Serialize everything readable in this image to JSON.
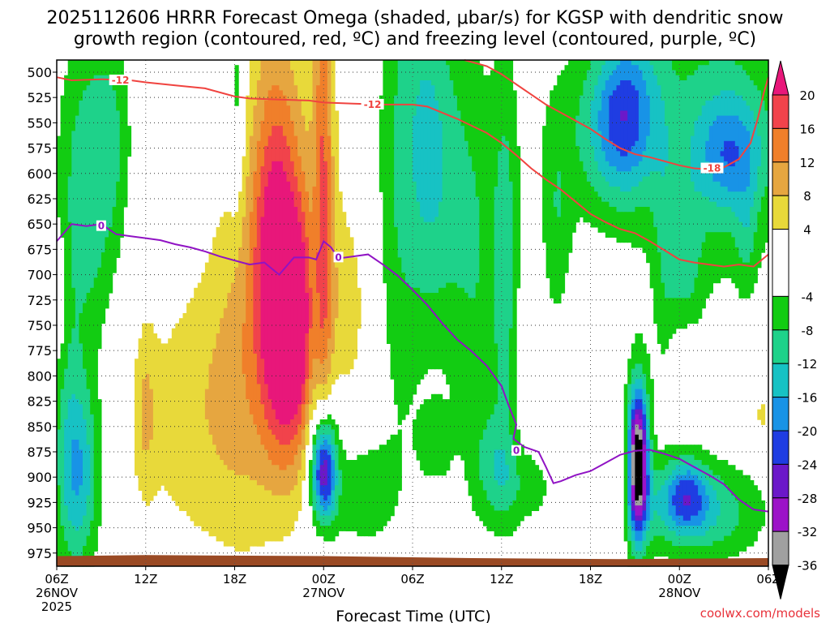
{
  "chart_data": {
    "type": "heatmap",
    "title_line1": "2025112606 HRRR Forecast Omega (shaded, μbar/s) for KGSP with dendritic snow",
    "title_line2": "growth region (contoured, red, ºC) and freezing level (contoured, purple, ºC)",
    "xlabel": "Forecast Time (UTC)",
    "credit": "coolwx.com/models",
    "x_ticks": [
      {
        "h": 0,
        "label": "06Z",
        "date": "26NOV",
        "year": "2025"
      },
      {
        "h": 6,
        "label": "12Z",
        "date": "",
        "year": ""
      },
      {
        "h": 12,
        "label": "18Z",
        "date": "",
        "year": ""
      },
      {
        "h": 18,
        "label": "00Z",
        "date": "27NOV",
        "year": ""
      },
      {
        "h": 24,
        "label": "06Z",
        "date": "",
        "year": ""
      },
      {
        "h": 30,
        "label": "12Z",
        "date": "",
        "year": ""
      },
      {
        "h": 36,
        "label": "18Z",
        "date": "",
        "year": ""
      },
      {
        "h": 42,
        "label": "00Z",
        "date": "28NOV",
        "year": ""
      },
      {
        "h": 48,
        "label": "06Z",
        "date": "",
        "year": ""
      }
    ],
    "xlim_hours": [
      0,
      48
    ],
    "y_ticks": [
      "500",
      "525",
      "550",
      "575",
      "600",
      "625",
      "650",
      "675",
      "700",
      "725",
      "750",
      "775",
      "800",
      "825",
      "850",
      "875",
      "900",
      "925",
      "950",
      "975"
    ],
    "ylim_mb": [
      488,
      988
    ],
    "y_reversed": true,
    "grid": "dotted",
    "colorbar": {
      "labels": [
        "20",
        "16",
        "12",
        "8",
        "4",
        "-4",
        "-8",
        "-12",
        "-16",
        "-20",
        "-24",
        "-28",
        "-32",
        "-36"
      ],
      "bins": [
        {
          "lo": 20,
          "hi": 24,
          "color": "#e8177a"
        },
        {
          "lo": 16,
          "hi": 20,
          "color": "#f1434b"
        },
        {
          "lo": 12,
          "hi": 16,
          "color": "#f07f2a"
        },
        {
          "lo": 8,
          "hi": 12,
          "color": "#e6a640"
        },
        {
          "lo": 4,
          "hi": 8,
          "color": "#e8d93a"
        },
        {
          "lo": -4,
          "hi": 4,
          "color": "#ffffff"
        },
        {
          "lo": -8,
          "hi": -4,
          "color": "#12cc12"
        },
        {
          "lo": -12,
          "hi": -8,
          "color": "#1ed28a"
        },
        {
          "lo": -16,
          "hi": -12,
          "color": "#17c2c4"
        },
        {
          "lo": -20,
          "hi": -16,
          "color": "#1893e6"
        },
        {
          "lo": -24,
          "hi": -20,
          "color": "#1f3de2"
        },
        {
          "lo": -28,
          "hi": -24,
          "color": "#6b18c9"
        },
        {
          "lo": -32,
          "hi": -28,
          "color": "#9c13c8"
        },
        {
          "lo": -36,
          "hi": -32,
          "color": "#a0a0a0"
        },
        {
          "lo": -40,
          "hi": -36,
          "color": "#000000"
        }
      ]
    },
    "omega_features": [
      {
        "t": 2.0,
        "p": 620,
        "st": 1.4,
        "sp": 115,
        "a": -11
      },
      {
        "t": 1.6,
        "p": 900,
        "st": 1.0,
        "sp": 65,
        "a": -13
      },
      {
        "t": 0.8,
        "p": 860,
        "st": 0.8,
        "sp": 90,
        "a": -6
      },
      {
        "t": 3.8,
        "p": 560,
        "st": 0.9,
        "sp": 75,
        "a": -6
      },
      {
        "t": 0.3,
        "p": 720,
        "st": 0.25,
        "sp": 40,
        "a": 5
      },
      {
        "t": 6.0,
        "p": 835,
        "st": 0.5,
        "sp": 55,
        "a": 6
      },
      {
        "t": 9.5,
        "p": 840,
        "st": 3.5,
        "sp": 100,
        "a": 6
      },
      {
        "t": 13.0,
        "p": 760,
        "st": 2.0,
        "sp": 140,
        "a": 7
      },
      {
        "t": 15.0,
        "p": 700,
        "st": 1.1,
        "sp": 100,
        "a": 18
      },
      {
        "t": 15.8,
        "p": 810,
        "st": 1.0,
        "sp": 70,
        "a": 10
      },
      {
        "t": 14.5,
        "p": 560,
        "st": 1.2,
        "sp": 140,
        "a": 7
      },
      {
        "t": 17.0,
        "p": 640,
        "st": 1.6,
        "sp": 160,
        "a": 5
      },
      {
        "t": 16.4,
        "p": 730,
        "st": 0.5,
        "sp": 65,
        "a": 10
      },
      {
        "t": 18.0,
        "p": 580,
        "st": 0.45,
        "sp": 240,
        "a": 12
      },
      {
        "t": 19.5,
        "p": 735,
        "st": 1.3,
        "sp": 75,
        "a": 5
      },
      {
        "t": 12.1,
        "p": 530,
        "st": 0.4,
        "sp": 70,
        "a": -7
      },
      {
        "t": 18.0,
        "p": 895,
        "st": 0.55,
        "sp": 35,
        "a": -22
      },
      {
        "t": 18.0,
        "p": 880,
        "st": 0.7,
        "sp": 55,
        "a": -10
      },
      {
        "t": 20.5,
        "p": 915,
        "st": 1.6,
        "sp": 40,
        "a": -7
      },
      {
        "t": 23.0,
        "p": 600,
        "st": 1.1,
        "sp": 200,
        "a": -7
      },
      {
        "t": 25.0,
        "p": 560,
        "st": 1.1,
        "sp": 130,
        "a": -9
      },
      {
        "t": 26.5,
        "p": 610,
        "st": 1.5,
        "sp": 120,
        "a": -6
      },
      {
        "t": 28.5,
        "p": 720,
        "st": 1.3,
        "sp": 170,
        "a": -6
      },
      {
        "t": 30.3,
        "p": 690,
        "st": 0.6,
        "sp": 150,
        "a": -8
      },
      {
        "t": 29.5,
        "p": 885,
        "st": 0.9,
        "sp": 35,
        "a": -6
      },
      {
        "t": 31.5,
        "p": 910,
        "st": 1.6,
        "sp": 30,
        "a": -6
      },
      {
        "t": 25.5,
        "p": 870,
        "st": 0.9,
        "sp": 30,
        "a": -5
      },
      {
        "t": 33.7,
        "p": 660,
        "st": 0.7,
        "sp": 70,
        "a": -6
      },
      {
        "t": 36.5,
        "p": 560,
        "st": 2.8,
        "sp": 70,
        "a": -7
      },
      {
        "t": 38.0,
        "p": 545,
        "st": 1.4,
        "sp": 50,
        "a": -12
      },
      {
        "t": 39.0,
        "p": 520,
        "st": 1.4,
        "sp": 70,
        "a": -6
      },
      {
        "t": 41.0,
        "p": 700,
        "st": 0.6,
        "sp": 100,
        "a": -5
      },
      {
        "t": 44.5,
        "p": 560,
        "st": 3.5,
        "sp": 110,
        "a": -9
      },
      {
        "t": 45.5,
        "p": 580,
        "st": 1.6,
        "sp": 40,
        "a": -12
      },
      {
        "t": 42.5,
        "p": 700,
        "st": 0.8,
        "sp": 60,
        "a": -6
      },
      {
        "t": 46.5,
        "p": 660,
        "st": 0.5,
        "sp": 40,
        "a": -5
      },
      {
        "t": 39.2,
        "p": 885,
        "st": 0.45,
        "sp": 45,
        "a": -30
      },
      {
        "t": 39.2,
        "p": 880,
        "st": 0.6,
        "sp": 70,
        "a": -12
      },
      {
        "t": 38.3,
        "p": 900,
        "st": 0.3,
        "sp": 35,
        "a": 5
      },
      {
        "t": 41.5,
        "p": 930,
        "st": 2.0,
        "sp": 30,
        "a": -8
      },
      {
        "t": 44.5,
        "p": 935,
        "st": 2.5,
        "sp": 35,
        "a": -9
      },
      {
        "t": 42.5,
        "p": 915,
        "st": 1.0,
        "sp": 25,
        "a": -12
      },
      {
        "t": 42.5,
        "p": 790,
        "st": 0.9,
        "sp": 30,
        "a": 5
      },
      {
        "t": 47.6,
        "p": 840,
        "st": 0.5,
        "sp": 20,
        "a": 5
      }
    ],
    "dgz_contour_label": "-12",
    "dgz_contour": [
      [
        0,
        505
      ],
      [
        1,
        508
      ],
      [
        3,
        507
      ],
      [
        5,
        508
      ],
      [
        6,
        510
      ],
      [
        8,
        513
      ],
      [
        10,
        516
      ],
      [
        12,
        524
      ],
      [
        13,
        526
      ],
      [
        15,
        527
      ],
      [
        17,
        528
      ],
      [
        18,
        530
      ],
      [
        20,
        531
      ],
      [
        22,
        532
      ],
      [
        24,
        532
      ],
      [
        25,
        534
      ],
      [
        26,
        540
      ],
      [
        27,
        546
      ],
      [
        28,
        553
      ],
      [
        29,
        560
      ],
      [
        30,
        570
      ],
      [
        31,
        582
      ],
      [
        32,
        595
      ],
      [
        33,
        606
      ],
      [
        34,
        616
      ],
      [
        35,
        628
      ],
      [
        36,
        640
      ],
      [
        37,
        648
      ],
      [
        38,
        655
      ],
      [
        39,
        659
      ],
      [
        40,
        667
      ],
      [
        41,
        676
      ],
      [
        42,
        685
      ],
      [
        43,
        688
      ],
      [
        44,
        690
      ],
      [
        45,
        692
      ],
      [
        46,
        690
      ],
      [
        47,
        692
      ],
      [
        48,
        680
      ]
    ],
    "dgz_contour_labels": [
      {
        "t": 4.3,
        "p": 508,
        "text": "-12"
      },
      {
        "t": 21.3,
        "p": 532,
        "text": "-12"
      }
    ],
    "dgz_upper_contour": [
      [
        27.5,
        488
      ],
      [
        29,
        494
      ],
      [
        30,
        502
      ],
      [
        31,
        512
      ],
      [
        32,
        522
      ],
      [
        33,
        532
      ],
      [
        34,
        540
      ],
      [
        35,
        548
      ],
      [
        36,
        556
      ],
      [
        37,
        566
      ],
      [
        38,
        575
      ],
      [
        39,
        581
      ],
      [
        40,
        584
      ],
      [
        41,
        588
      ],
      [
        42,
        592
      ],
      [
        43,
        595
      ],
      [
        44,
        596
      ],
      [
        45,
        594
      ],
      [
        46,
        586
      ],
      [
        46.8,
        570
      ],
      [
        47.3,
        545
      ],
      [
        47.7,
        520
      ],
      [
        48,
        505
      ]
    ],
    "dgz_upper_label": {
      "t": 44.2,
      "p": 595,
      "text": "-18"
    },
    "freezing_level": [
      [
        0,
        667
      ],
      [
        1,
        650
      ],
      [
        2,
        652
      ],
      [
        3,
        650
      ],
      [
        4,
        660
      ],
      [
        5,
        662
      ],
      [
        6,
        664
      ],
      [
        7,
        666
      ],
      [
        8,
        670
      ],
      [
        9,
        673
      ],
      [
        10,
        677
      ],
      [
        11,
        682
      ],
      [
        12,
        686
      ],
      [
        13,
        690
      ],
      [
        14,
        688
      ],
      [
        15,
        700
      ],
      [
        16,
        683
      ],
      [
        17,
        683
      ],
      [
        17.5,
        685
      ],
      [
        18,
        667
      ],
      [
        18.5,
        673
      ],
      [
        19,
        684
      ],
      [
        20,
        682
      ],
      [
        21,
        680
      ],
      [
        22,
        690
      ],
      [
        23,
        701
      ],
      [
        24,
        715
      ],
      [
        25,
        730
      ],
      [
        26,
        748
      ],
      [
        27,
        764
      ],
      [
        28,
        776
      ],
      [
        29,
        790
      ],
      [
        30,
        810
      ],
      [
        30.5,
        830
      ],
      [
        31,
        848
      ],
      [
        30.8,
        862
      ],
      [
        31.5,
        870
      ],
      [
        32.5,
        875
      ],
      [
        33,
        890
      ],
      [
        33.5,
        906
      ],
      [
        34,
        904
      ],
      [
        35,
        898
      ],
      [
        36,
        894
      ],
      [
        37,
        886
      ],
      [
        38,
        878
      ],
      [
        39,
        874
      ],
      [
        40,
        873
      ],
      [
        41,
        877
      ],
      [
        42,
        882
      ],
      [
        43,
        890
      ],
      [
        44,
        898
      ],
      [
        45,
        907
      ],
      [
        46,
        922
      ],
      [
        47,
        932
      ],
      [
        48,
        934
      ]
    ],
    "freezing_labels": [
      {
        "t": 3.0,
        "p": 652,
        "text": "0"
      },
      {
        "t": 19.0,
        "p": 683,
        "text": "0"
      },
      {
        "t": 31.0,
        "p": 874,
        "text": "0"
      }
    ]
  }
}
